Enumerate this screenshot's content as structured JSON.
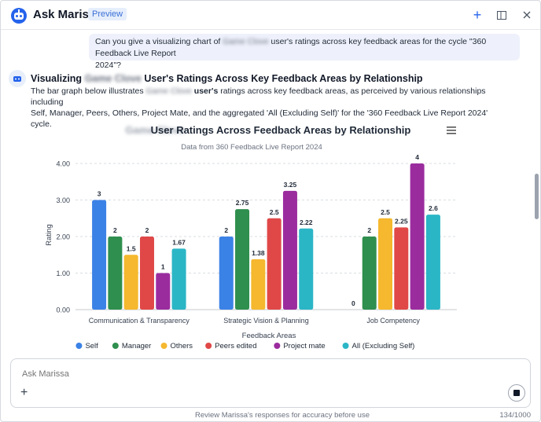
{
  "header": {
    "title": "Ask Marissa",
    "badge": "Preview",
    "icons": [
      "add-icon",
      "sidebar-toggle-icon",
      "close-icon"
    ]
  },
  "user_message": {
    "line1_pre": "Can you give a visualizing chart of",
    "name": "Game Clove",
    "line1_post": "user's ratings across key feedback areas for the cycle \"360 Feedback Live Report",
    "line2": "2024\"?"
  },
  "response": {
    "title_pre": "Visualizing",
    "name": "Game Clove",
    "title_post": "User's Ratings Across Key Feedback Areas by Relationship",
    "body_pre": "The bar graph below illustrates",
    "body_name": "Game Clove",
    "body_bold": "user's",
    "body_post": "ratings across key feedback areas, as perceived by various relationships including",
    "body_line2": "Self, Manager, Peers, Others, Project Mate, and the aggregated 'All (Excluding Self)' for the '360 Feedback Live Report 2024' cycle."
  },
  "chart_data": {
    "type": "bar",
    "title_name": "Game Clove",
    "title": "User Ratings Across Feedback Areas by Relationship",
    "subtitle": "Data from 360 Feedback Live Report 2024",
    "xlabel": "Feedback Areas",
    "ylabel": "Rating",
    "ylim": [
      0,
      4
    ],
    "yticks": [
      "0.00",
      "1.00",
      "2.00",
      "3.00",
      "4.00"
    ],
    "categories": [
      "Communication & Transparency",
      "Strategic Vision & Planning",
      "Job Competency"
    ],
    "series": [
      {
        "name": "Self",
        "color": "#3b82e6",
        "values": [
          3,
          2,
          0
        ],
        "labels": [
          "3",
          "2",
          "0"
        ]
      },
      {
        "name": "Manager",
        "color": "#2f8f4e",
        "values": [
          2,
          2.75,
          2
        ],
        "labels": [
          "2",
          "2.75",
          "2"
        ]
      },
      {
        "name": "Others",
        "color": "#f5b82e",
        "values": [
          1.5,
          1.38,
          2.5
        ],
        "labels": [
          "1.5",
          "1.38",
          "2.5"
        ]
      },
      {
        "name": "Peers edited",
        "color": "#e04848",
        "values": [
          2,
          2.5,
          2.25
        ],
        "labels": [
          "2",
          "2.5",
          "2.25"
        ]
      },
      {
        "name": "Project mate",
        "color": "#9b2c9e",
        "values": [
          1,
          3.25,
          4
        ],
        "labels": [
          "1",
          "3.25",
          "4"
        ]
      },
      {
        "name": "All (Excluding Self)",
        "color": "#2bb6c6",
        "values": [
          1.67,
          2.22,
          2.6
        ],
        "labels": [
          "1.67",
          "2.22",
          "2.6"
        ]
      }
    ],
    "legend_position": "bottom"
  },
  "composer": {
    "placeholder": "Ask Marissa"
  },
  "footer": {
    "note": "Review Marissa's responses for accuracy before use",
    "counter": "134/1000"
  }
}
